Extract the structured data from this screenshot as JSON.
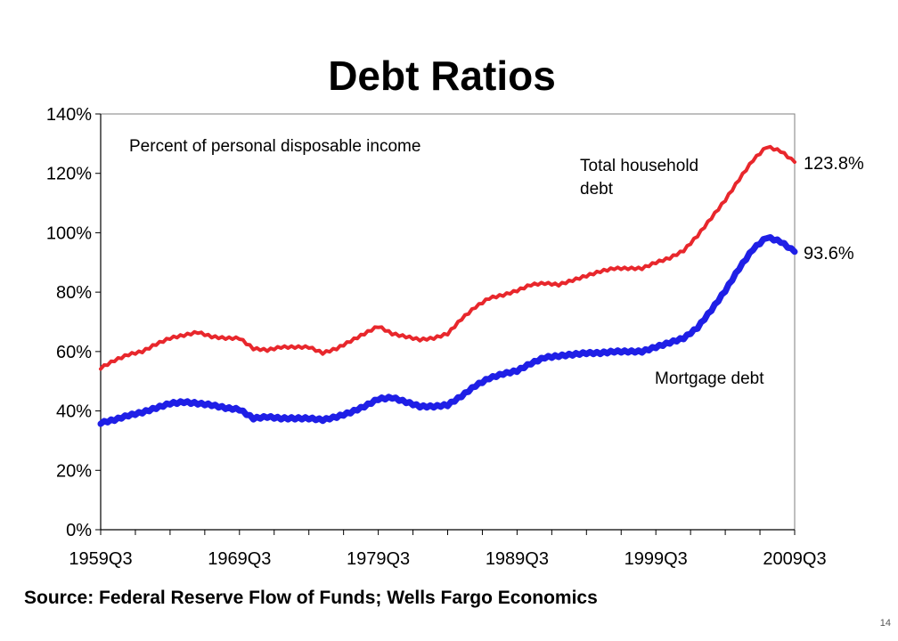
{
  "slide": {
    "title": "Debt Ratios",
    "source": "Source: Federal Reserve Flow of Funds; Wells Fargo Economics",
    "page_number": "14"
  },
  "chart_data": {
    "type": "line",
    "title": "Debt Ratios",
    "subtitle": "Percent of personal disposable income",
    "xlabel": "",
    "ylabel": "",
    "ylim": [
      0,
      140
    ],
    "xlim": [
      1959.5,
      2009.5
    ],
    "y_ticks": [
      "0%",
      "20%",
      "40%",
      "60%",
      "80%",
      "100%",
      "120%",
      "140%"
    ],
    "y_tick_values": [
      0,
      20,
      40,
      60,
      80,
      100,
      120,
      140
    ],
    "x_ticks": [
      "1959Q3",
      "1969Q3",
      "1979Q3",
      "1989Q3",
      "1999Q3",
      "2009Q3"
    ],
    "x_tick_values": [
      1959.5,
      1969.5,
      1979.5,
      1989.5,
      1999.5,
      2009.5
    ],
    "grid": false,
    "series": [
      {
        "name": "Total household debt",
        "label": "Total household debt",
        "color": "#e8272c",
        "end_label": "123.8%",
        "x": [
          1959.5,
          1960.5,
          1961.5,
          1962.5,
          1963.5,
          1964.5,
          1965.5,
          1966.5,
          1967.5,
          1968.5,
          1969.5,
          1970.5,
          1971.5,
          1972.5,
          1973.5,
          1974.5,
          1975.5,
          1976.5,
          1977.5,
          1978.5,
          1979.5,
          1980.5,
          1981.5,
          1982.5,
          1983.5,
          1984.5,
          1985.5,
          1986.5,
          1987.5,
          1988.5,
          1989.5,
          1990.5,
          1991.5,
          1992.5,
          1993.5,
          1994.5,
          1995.5,
          1996.5,
          1997.5,
          1998.5,
          1999.5,
          2000.5,
          2001.5,
          2002.5,
          2003.5,
          2004.5,
          2005.5,
          2006.5,
          2007.5,
          2008.5,
          2009.5
        ],
        "values": [
          54.5,
          57,
          59,
          60,
          62.5,
          64.5,
          65.5,
          66.5,
          65,
          64.5,
          64.5,
          61,
          60.5,
          61.5,
          61.5,
          61.5,
          59.5,
          61,
          63.5,
          66,
          68.5,
          66,
          65,
          64,
          64.5,
          66,
          71,
          75,
          78,
          79,
          80.5,
          82.5,
          83,
          82.5,
          84,
          85.5,
          87,
          88,
          88,
          88,
          90,
          91.5,
          94,
          99,
          105,
          111,
          118,
          124.5,
          129,
          127.5,
          123.8
        ]
      },
      {
        "name": "Mortgage debt",
        "label": "Mortgage debt",
        "color": "#1f1fe6",
        "end_label": "93.6%",
        "x": [
          1959.5,
          1960.5,
          1961.5,
          1962.5,
          1963.5,
          1964.5,
          1965.5,
          1966.5,
          1967.5,
          1968.5,
          1969.5,
          1970.5,
          1971.5,
          1972.5,
          1973.5,
          1974.5,
          1975.5,
          1976.5,
          1977.5,
          1978.5,
          1979.5,
          1980.5,
          1981.5,
          1982.5,
          1983.5,
          1984.5,
          1985.5,
          1986.5,
          1987.5,
          1988.5,
          1989.5,
          1990.5,
          1991.5,
          1992.5,
          1993.5,
          1994.5,
          1995.5,
          1996.5,
          1997.5,
          1998.5,
          1999.5,
          2000.5,
          2001.5,
          2002.5,
          2003.5,
          2004.5,
          2005.5,
          2006.5,
          2007.5,
          2008.5,
          2009.5
        ],
        "values": [
          36,
          37,
          38.5,
          39.5,
          41,
          42.5,
          43,
          42.5,
          42,
          41,
          40.5,
          37.5,
          38,
          37.5,
          37.5,
          37.5,
          37,
          38,
          39.5,
          41.5,
          44,
          44.5,
          43,
          41.5,
          41.5,
          42,
          45,
          48.5,
          51,
          52.5,
          53.5,
          56,
          58,
          58.5,
          59,
          59.5,
          59.5,
          60,
          60,
          60,
          61.5,
          63,
          64.5,
          68,
          74,
          80.5,
          88,
          94.5,
          98.5,
          97,
          93.6
        ]
      }
    ],
    "annotations": {
      "subtitle": "Percent of personal disposable income",
      "total_label_line1": "Total household",
      "total_label_line2": "debt",
      "mortgage_label": "Mortgage debt"
    }
  }
}
